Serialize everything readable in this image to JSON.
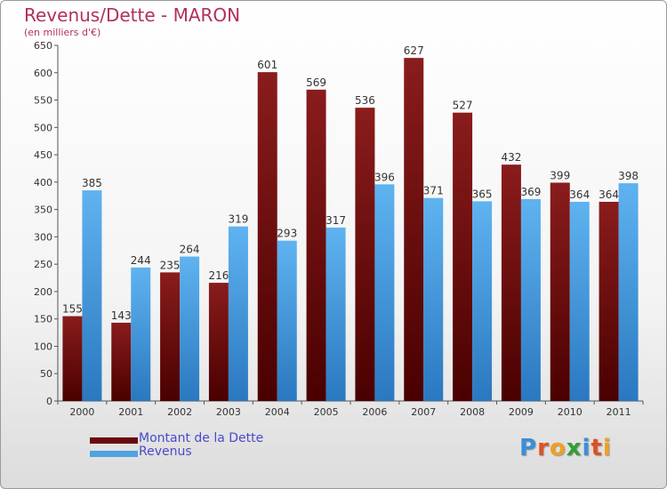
{
  "chart_data": {
    "type": "bar",
    "title": "Revenus/Dette - MARON",
    "subtitle": "(en milliers d'€)",
    "categories": [
      "2000",
      "2001",
      "2002",
      "2003",
      "2004",
      "2005",
      "2006",
      "2007",
      "2008",
      "2009",
      "2010",
      "2011"
    ],
    "series": [
      {
        "name": "Montant de la Dette",
        "color": "#7a1010",
        "values": [
          155,
          143,
          235,
          216,
          601,
          569,
          536,
          627,
          527,
          432,
          399,
          364
        ]
      },
      {
        "name": "Revenus",
        "color": "#4fa3e0",
        "values": [
          385,
          244,
          264,
          319,
          293,
          317,
          396,
          371,
          365,
          369,
          364,
          398
        ]
      }
    ],
    "ylim": [
      0,
      650
    ],
    "yticks": [
      0,
      50,
      100,
      150,
      200,
      250,
      300,
      350,
      400,
      450,
      500,
      550,
      600,
      650
    ],
    "grid": false,
    "legend_position": "bottom-left"
  },
  "branding": {
    "logo_letters": [
      "P",
      "r",
      "o",
      "x",
      "i",
      "t",
      "i"
    ],
    "logo_colors": [
      "#3a8fd8",
      "#e05020",
      "#f0a020",
      "#30a030",
      "#3a8fd8",
      "#e05020",
      "#f0a020"
    ]
  }
}
